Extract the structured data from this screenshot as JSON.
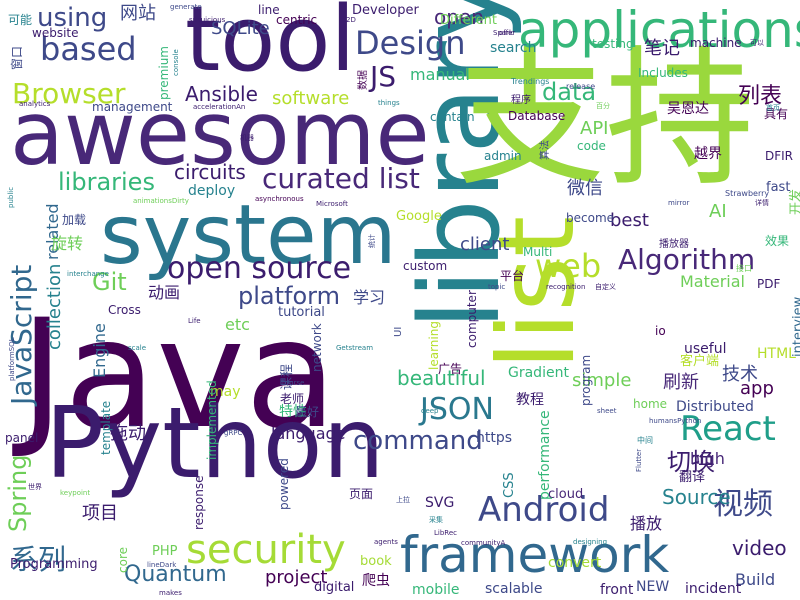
{
  "palette": [
    "#440154",
    "#482878",
    "#3e4989",
    "#31688e",
    "#26828e",
    "#1f9e89",
    "#35b779",
    "#6ece58",
    "#b5de2b",
    "#fde725"
  ],
  "words": [
    {
      "text": "Java",
      "color": "#440154"
    },
    {
      "text": "Python",
      "color": "#3b1c6d"
    },
    {
      "text": "library",
      "color": "#26828e"
    },
    {
      "text": "支持",
      "color": "#9ad83d"
    },
    {
      "text": "awesome",
      "color": "#482878"
    },
    {
      "text": "system",
      "color": "#2a768e"
    },
    {
      "text": "tool",
      "color": "#3b1c6d"
    },
    {
      "text": "list",
      "color": "#b5de2b"
    },
    {
      "text": "applications",
      "color": "#35b779"
    },
    {
      "text": "framework",
      "color": "#31688e"
    },
    {
      "text": "security",
      "color": "#a5db36"
    },
    {
      "text": "Android",
      "color": "#3e4989"
    },
    {
      "text": "React",
      "color": "#1f9e89"
    },
    {
      "text": "JSON",
      "color": "#2a788e"
    },
    {
      "text": "open source",
      "color": "#3b1c6d"
    },
    {
      "text": "Algorithm",
      "color": "#482878"
    },
    {
      "text": "curated list",
      "color": "#482878"
    },
    {
      "text": "web",
      "color": "#b5de2b"
    },
    {
      "text": "based",
      "color": "#3e4989"
    },
    {
      "text": "Design",
      "color": "#3e4989"
    },
    {
      "text": "JavaScript",
      "color": "#31688e"
    },
    {
      "text": "Browser",
      "color": "#b5de2b"
    },
    {
      "text": "视频",
      "color": "#3e4989"
    },
    {
      "text": "command",
      "color": "#3e4989"
    },
    {
      "text": "libraries",
      "color": "#35b779"
    },
    {
      "text": "系列",
      "color": "#31688e"
    },
    {
      "text": "platform",
      "color": "#3e4989"
    },
    {
      "text": "切换",
      "color": "#3b1c6d"
    },
    {
      "text": "data",
      "color": "#35b779"
    },
    {
      "text": "JS",
      "color": "#3b1c6d"
    },
    {
      "text": "using",
      "color": "#3e4989"
    },
    {
      "text": "Spring",
      "color": "#6ece58"
    },
    {
      "text": "Ansible",
      "color": "#3b1c6d"
    },
    {
      "text": "Git",
      "color": "#6ece58"
    },
    {
      "text": "Quantum",
      "color": "#31688e"
    },
    {
      "text": "Source",
      "color": "#26828e"
    },
    {
      "text": "video",
      "color": "#3b1c6d"
    },
    {
      "text": "project",
      "color": "#440154"
    },
    {
      "text": "software",
      "color": "#b5de2b"
    },
    {
      "text": "beautiful",
      "color": "#35b779"
    },
    {
      "text": "language",
      "color": "#3b1c6d"
    },
    {
      "text": "circuits",
      "color": "#3b1c6d"
    },
    {
      "text": "列表",
      "color": "#440154"
    },
    {
      "text": "项目",
      "color": "#3b1c6d"
    },
    {
      "text": "刷新",
      "color": "#482878"
    },
    {
      "text": "微信",
      "color": "#3e4989"
    },
    {
      "text": "技术",
      "color": "#3e4989"
    },
    {
      "text": "app",
      "color": "#440154"
    },
    {
      "text": "AI",
      "color": "#6ece58"
    },
    {
      "text": "collection",
      "color": "#26828e"
    },
    {
      "text": "Engine",
      "color": "#31688e"
    },
    {
      "text": "simple",
      "color": "#6ece58"
    },
    {
      "text": "open",
      "color": "#482878"
    },
    {
      "text": "API",
      "color": "#6ece58"
    },
    {
      "text": "client",
      "color": "#3e4989"
    },
    {
      "text": "best",
      "color": "#3b1c6d"
    },
    {
      "text": "related",
      "color": "#31688e"
    },
    {
      "text": "旋转",
      "color": "#6ece58"
    },
    {
      "text": "拖动",
      "color": "#3b1c6d"
    },
    {
      "text": "动画",
      "color": "#3b1c6d"
    },
    {
      "text": "学习",
      "color": "#3e4989"
    },
    {
      "text": "播放",
      "color": "#3b1c6d"
    },
    {
      "text": "high",
      "color": "#482878"
    },
    {
      "text": "Material",
      "color": "#6ece58"
    },
    {
      "text": "Build",
      "color": "#3e4989"
    },
    {
      "text": "etc",
      "color": "#6ece58"
    },
    {
      "text": "SQLite",
      "color": "#3e4989"
    },
    {
      "text": "网站",
      "color": "#3e4989"
    },
    {
      "text": "笔记",
      "color": "#3b1c6d"
    },
    {
      "text": "manual",
      "color": "#35b779"
    },
    {
      "text": "search",
      "color": "#26828e"
    },
    {
      "text": "Different",
      "color": "#6ece58"
    },
    {
      "text": "Developer",
      "color": "#3b1c6d"
    },
    {
      "text": "Database",
      "color": "#440154"
    },
    {
      "text": "contain",
      "color": "#26828e"
    },
    {
      "text": "code",
      "color": "#35b779"
    },
    {
      "text": "admin",
      "color": "#26828e"
    },
    {
      "text": "越界",
      "color": "#440154"
    },
    {
      "text": "吴恩达",
      "color": "#440154"
    },
    {
      "text": "deploy",
      "color": "#26828e"
    },
    {
      "text": "tutorial",
      "color": "#3e4989"
    },
    {
      "text": "https",
      "color": "#3e4989"
    },
    {
      "text": "useful",
      "color": "#3b1c6d"
    },
    {
      "text": "Distributed",
      "color": "#3e4989"
    },
    {
      "text": "cloud",
      "color": "#482878"
    },
    {
      "text": "mobile",
      "color": "#35b779"
    },
    {
      "text": "scalable",
      "color": "#3e4989"
    },
    {
      "text": "front",
      "color": "#3b1c6d"
    },
    {
      "text": "NEW",
      "color": "#3e4989"
    },
    {
      "text": "incident",
      "color": "#3b1c6d"
    },
    {
      "text": "digital",
      "color": "#3b1c6d"
    },
    {
      "text": "爬虫",
      "color": "#440154"
    },
    {
      "text": "book",
      "color": "#a5db36"
    },
    {
      "text": "convert",
      "color": "#a5db36"
    },
    {
      "text": "Programming",
      "color": "#3b1c6d"
    },
    {
      "text": "PHP",
      "color": "#6ece58"
    },
    {
      "text": "performance",
      "color": "#35b779"
    },
    {
      "text": "SVG",
      "color": "#3b1c6d"
    },
    {
      "text": "页面",
      "color": "#3b1c6d"
    },
    {
      "text": "CSS",
      "color": "#26828e"
    },
    {
      "text": "HTML",
      "color": "#b5de2b"
    },
    {
      "text": "PDF",
      "color": "#3b1c6d"
    },
    {
      "text": "interview",
      "color": "#31688e"
    },
    {
      "text": "Gradient",
      "color": "#35b779"
    },
    {
      "text": "教程",
      "color": "#3b1c6d"
    },
    {
      "text": "home",
      "color": "#6ece58"
    },
    {
      "text": "广告",
      "color": "#440154"
    },
    {
      "text": "课程",
      "color": "#3e4989"
    },
    {
      "text": "老师",
      "color": "#3b1c6d"
    },
    {
      "text": "特性",
      "color": "#35b779"
    },
    {
      "text": "may",
      "color": "#b5de2b"
    },
    {
      "text": "最好",
      "color": "#3e4989"
    },
    {
      "text": "翻译",
      "color": "#3b1c6d"
    },
    {
      "text": "客户端",
      "color": "#b5de2b"
    },
    {
      "text": "fast",
      "color": "#3e4989"
    },
    {
      "text": "开发",
      "color": "#6ece58"
    },
    {
      "text": "效果",
      "color": "#35b779"
    },
    {
      "text": "DFIR",
      "color": "#3b1c6d"
    },
    {
      "text": "具有",
      "color": "#440154"
    },
    {
      "text": "machine",
      "color": "#3b1c6d"
    },
    {
      "text": "testing",
      "color": "#35b779"
    },
    {
      "text": "Includes",
      "color": "#35b779"
    },
    {
      "text": "centric",
      "color": "#440154"
    },
    {
      "text": "line",
      "color": "#3b1c6d"
    },
    {
      "text": "premium",
      "color": "#35b779"
    },
    {
      "text": "management",
      "color": "#3e4989"
    },
    {
      "text": "website",
      "color": "#3b1c6d"
    },
    {
      "text": "窗口",
      "color": "#3e4989"
    },
    {
      "text": "可能",
      "color": "#26828e"
    },
    {
      "text": "加载",
      "color": "#3e4989"
    },
    {
      "text": "Google",
      "color": "#b5de2b"
    },
    {
      "text": "become",
      "color": "#3e4989"
    },
    {
      "text": "Multi",
      "color": "#35b779"
    },
    {
      "text": "custom",
      "color": "#3b1c6d"
    },
    {
      "text": "平台",
      "color": "#440154"
    },
    {
      "text": "computer",
      "color": "#3b1c6d"
    },
    {
      "text": "learning",
      "color": "#b5de2b"
    },
    {
      "text": "program",
      "color": "#3e4989"
    },
    {
      "text": "network",
      "color": "#3e4989"
    },
    {
      "text": "response",
      "color": "#3b1c6d"
    },
    {
      "text": "implemented",
      "color": "#35b779"
    },
    {
      "text": "powered",
      "color": "#3e4989"
    },
    {
      "text": "template",
      "color": "#26828e"
    },
    {
      "text": "core",
      "color": "#6ece58"
    },
    {
      "text": "panel",
      "color": "#3b1c6d"
    },
    {
      "text": "io",
      "color": "#440154"
    },
    {
      "text": "Cross",
      "color": "#3b1c6d"
    },
    {
      "text": "Strawberry",
      "color": "#3e4989"
    },
    {
      "text": "播放器",
      "color": "#3b1c6d"
    },
    {
      "text": "数据",
      "color": "#440154"
    },
    {
      "text": "算法",
      "color": "#3e4989"
    },
    {
      "text": "程序",
      "color": "#3b1c6d"
    },
    {
      "text": "Trendings",
      "color": "#26828e"
    },
    {
      "text": "release",
      "color": "#3e4989"
    },
    {
      "text": "接口",
      "color": "#6ece58"
    },
    {
      "text": "中间",
      "color": "#26828e"
    },
    {
      "text": "世界",
      "color": "#3b1c6d"
    },
    {
      "text": "things",
      "color": "#26828e"
    },
    {
      "text": "analytics",
      "color": "#3b1c6d"
    },
    {
      "text": "Getstream",
      "color": "#26828e"
    },
    {
      "text": "Course",
      "color": "#3e4989"
    },
    {
      "text": "scale",
      "color": "#26828e"
    },
    {
      "text": "Life",
      "color": "#3b1c6d"
    },
    {
      "text": "topic",
      "color": "#3e4989"
    },
    {
      "text": "recognition",
      "color": "#3b1c6d"
    },
    {
      "text": "自定义",
      "color": "#3b1c6d"
    },
    {
      "text": "gRPC",
      "color": "#3e4989"
    },
    {
      "text": "keypoint",
      "color": "#6ece58"
    },
    {
      "text": "agents",
      "color": "#3b1c6d"
    },
    {
      "text": "LibRec",
      "color": "#3b1c6d"
    },
    {
      "text": "communityA",
      "color": "#3b1c6d"
    },
    {
      "text": "designing",
      "color": "#26828e"
    },
    {
      "text": "makes",
      "color": "#3b1c6d"
    },
    {
      "text": "lineDark",
      "color": "#3e4989"
    },
    {
      "text": "humansPython",
      "color": "#3e4989"
    },
    {
      "text": "sheet",
      "color": "#3e4989"
    },
    {
      "text": "deep",
      "color": "#26828e"
    },
    {
      "text": "mirror",
      "color": "#3e4989"
    },
    {
      "text": "Flutter",
      "color": "#3e4989"
    },
    {
      "text": "Microsoft",
      "color": "#3b1c6d"
    },
    {
      "text": "asynchronous",
      "color": "#440154"
    },
    {
      "text": "animationsDirty",
      "color": "#6ece58"
    },
    {
      "text": "accelerationAn",
      "color": "#3b1c6d"
    },
    {
      "text": "interchange",
      "color": "#26828e"
    },
    {
      "text": "public",
      "color": "#26828e"
    },
    {
      "text": "platformSQL",
      "color": "#3e4989"
    },
    {
      "text": "generate",
      "color": "#3e4989"
    },
    {
      "text": "susuicious",
      "color": "#3b1c6d"
    },
    {
      "text": "offer",
      "color": "#3b1c6d"
    },
    {
      "text": "Spark",
      "color": "#3b1c6d"
    },
    {
      "text": "console",
      "color": "#26828e"
    },
    {
      "text": "机器",
      "color": "#3b1c6d"
    },
    {
      "text": "详情",
      "color": "#3b1c6d"
    },
    {
      "text": "可以",
      "color": "#3b1c6d"
    },
    {
      "text": "首页",
      "color": "#26828e"
    },
    {
      "text": "百分",
      "color": "#6ece58"
    },
    {
      "text": "2D",
      "color": "#3b1c6d"
    },
    {
      "text": "上拉",
      "color": "#3e4989"
    },
    {
      "text": "采集",
      "color": "#26828e"
    },
    {
      "text": "统计",
      "color": "#3e4989"
    },
    {
      "text": "UI",
      "color": "#3e4989"
    }
  ]
}
